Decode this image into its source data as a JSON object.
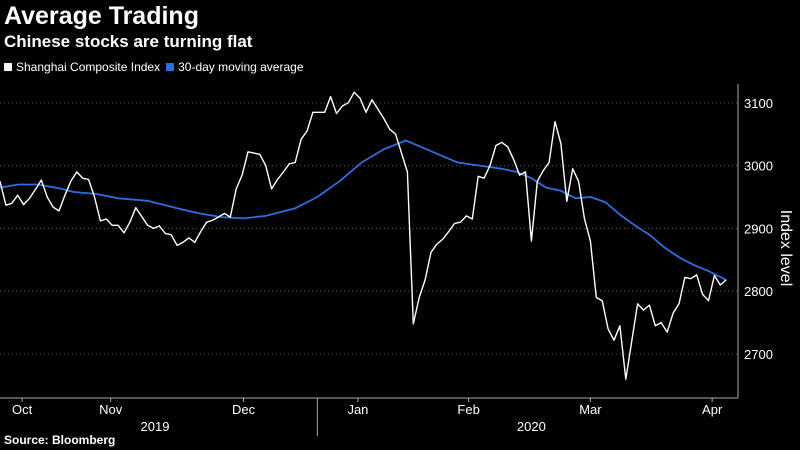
{
  "header": {
    "title": "Average Trading",
    "subtitle": "Chinese stocks are turning flat"
  },
  "footer": {
    "source": "Source: Bloomberg"
  },
  "colors": {
    "background": "#000000",
    "index_line": "#ffffff",
    "ma_line": "#2d6fe0",
    "grid": "#555555"
  },
  "chart_data": {
    "type": "line",
    "title": "Average Trading",
    "subtitle": "Chinese stocks are turning flat",
    "xlabel": "",
    "ylabel": "Index level",
    "ylim": [
      2630,
      3130
    ],
    "yticks": [
      2700,
      2800,
      2900,
      3000,
      3100
    ],
    "xticks": [
      {
        "label": "Oct",
        "t": 0.03
      },
      {
        "label": "Nov",
        "t": 0.15
      },
      {
        "label": "Dec",
        "t": 0.33
      },
      {
        "label": "Jan",
        "t": 0.485
      },
      {
        "label": "Feb",
        "t": 0.635
      },
      {
        "label": "Mar",
        "t": 0.8
      },
      {
        "label": "Apr",
        "t": 0.965
      }
    ],
    "year_labels": [
      {
        "label": "2019",
        "t": 0.21
      },
      {
        "label": "2020",
        "t": 0.72
      }
    ],
    "year_divider_t": 0.43,
    "grid": "horizontal",
    "legend": "top-left",
    "series": [
      {
        "name": "Shanghai Composite Index",
        "color": "#ffffff",
        "values": [
          {
            "t": 0.0,
            "v": 2975
          },
          {
            "t": 0.008,
            "v": 2937
          },
          {
            "t": 0.016,
            "v": 2940
          },
          {
            "t": 0.024,
            "v": 2953
          },
          {
            "t": 0.032,
            "v": 2938
          },
          {
            "t": 0.04,
            "v": 2948
          },
          {
            "t": 0.048,
            "v": 2962
          },
          {
            "t": 0.056,
            "v": 2977
          },
          {
            "t": 0.064,
            "v": 2950
          },
          {
            "t": 0.072,
            "v": 2934
          },
          {
            "t": 0.08,
            "v": 2928
          },
          {
            "t": 0.088,
            "v": 2953
          },
          {
            "t": 0.096,
            "v": 2975
          },
          {
            "t": 0.104,
            "v": 2990
          },
          {
            "t": 0.112,
            "v": 2980
          },
          {
            "t": 0.12,
            "v": 2978
          },
          {
            "t": 0.128,
            "v": 2950
          },
          {
            "t": 0.136,
            "v": 2912
          },
          {
            "t": 0.144,
            "v": 2915
          },
          {
            "t": 0.152,
            "v": 2905
          },
          {
            "t": 0.16,
            "v": 2905
          },
          {
            "t": 0.168,
            "v": 2893
          },
          {
            "t": 0.176,
            "v": 2910
          },
          {
            "t": 0.184,
            "v": 2933
          },
          {
            "t": 0.192,
            "v": 2919
          },
          {
            "t": 0.2,
            "v": 2905
          },
          {
            "t": 0.208,
            "v": 2900
          },
          {
            "t": 0.216,
            "v": 2904
          },
          {
            "t": 0.224,
            "v": 2892
          },
          {
            "t": 0.232,
            "v": 2890
          },
          {
            "t": 0.24,
            "v": 2873
          },
          {
            "t": 0.248,
            "v": 2878
          },
          {
            "t": 0.256,
            "v": 2885
          },
          {
            "t": 0.264,
            "v": 2878
          },
          {
            "t": 0.272,
            "v": 2895
          },
          {
            "t": 0.28,
            "v": 2910
          },
          {
            "t": 0.288,
            "v": 2913
          },
          {
            "t": 0.296,
            "v": 2918
          },
          {
            "t": 0.304,
            "v": 2924
          },
          {
            "t": 0.312,
            "v": 2918
          },
          {
            "t": 0.32,
            "v": 2963
          },
          {
            "t": 0.328,
            "v": 2985
          },
          {
            "t": 0.336,
            "v": 3022
          },
          {
            "t": 0.344,
            "v": 3020
          },
          {
            "t": 0.352,
            "v": 3018
          },
          {
            "t": 0.36,
            "v": 3000
          },
          {
            "t": 0.368,
            "v": 2963
          },
          {
            "t": 0.376,
            "v": 2978
          },
          {
            "t": 0.384,
            "v": 2990
          },
          {
            "t": 0.392,
            "v": 3003
          },
          {
            "t": 0.4,
            "v": 3005
          },
          {
            "t": 0.408,
            "v": 3042
          },
          {
            "t": 0.416,
            "v": 3055
          },
          {
            "t": 0.424,
            "v": 3085
          },
          {
            "t": 0.432,
            "v": 3085
          },
          {
            "t": 0.44,
            "v": 3085
          },
          {
            "t": 0.448,
            "v": 3110
          },
          {
            "t": 0.456,
            "v": 3083
          },
          {
            "t": 0.464,
            "v": 3095
          },
          {
            "t": 0.472,
            "v": 3100
          },
          {
            "t": 0.48,
            "v": 3117
          },
          {
            "t": 0.488,
            "v": 3107
          },
          {
            "t": 0.496,
            "v": 3085
          },
          {
            "t": 0.504,
            "v": 3105
          },
          {
            "t": 0.512,
            "v": 3090
          },
          {
            "t": 0.52,
            "v": 3075
          },
          {
            "t": 0.528,
            "v": 3058
          },
          {
            "t": 0.536,
            "v": 3050
          },
          {
            "t": 0.544,
            "v": 3020
          },
          {
            "t": 0.552,
            "v": 2990
          },
          {
            "t": 0.56,
            "v": 2748
          },
          {
            "t": 0.568,
            "v": 2790
          },
          {
            "t": 0.576,
            "v": 2818
          },
          {
            "t": 0.584,
            "v": 2862
          },
          {
            "t": 0.592,
            "v": 2875
          },
          {
            "t": 0.6,
            "v": 2883
          },
          {
            "t": 0.608,
            "v": 2895
          },
          {
            "t": 0.616,
            "v": 2908
          },
          {
            "t": 0.624,
            "v": 2910
          },
          {
            "t": 0.632,
            "v": 2920
          },
          {
            "t": 0.64,
            "v": 2915
          },
          {
            "t": 0.648,
            "v": 2983
          },
          {
            "t": 0.656,
            "v": 2980
          },
          {
            "t": 0.664,
            "v": 3000
          },
          {
            "t": 0.672,
            "v": 3032
          },
          {
            "t": 0.68,
            "v": 3037
          },
          {
            "t": 0.688,
            "v": 3030
          },
          {
            "t": 0.696,
            "v": 3010
          },
          {
            "t": 0.704,
            "v": 2985
          },
          {
            "t": 0.712,
            "v": 2990
          },
          {
            "t": 0.72,
            "v": 2880
          },
          {
            "t": 0.728,
            "v": 2975
          },
          {
            "t": 0.736,
            "v": 2992
          },
          {
            "t": 0.744,
            "v": 3005
          },
          {
            "t": 0.752,
            "v": 3070
          },
          {
            "t": 0.76,
            "v": 3035
          },
          {
            "t": 0.768,
            "v": 2943
          },
          {
            "t": 0.776,
            "v": 2995
          },
          {
            "t": 0.784,
            "v": 2975
          },
          {
            "t": 0.792,
            "v": 2915
          },
          {
            "t": 0.8,
            "v": 2880
          },
          {
            "t": 0.808,
            "v": 2790
          },
          {
            "t": 0.816,
            "v": 2785
          },
          {
            "t": 0.824,
            "v": 2740
          },
          {
            "t": 0.832,
            "v": 2722
          },
          {
            "t": 0.84,
            "v": 2745
          },
          {
            "t": 0.848,
            "v": 2660
          },
          {
            "t": 0.856,
            "v": 2720
          },
          {
            "t": 0.864,
            "v": 2780
          },
          {
            "t": 0.872,
            "v": 2770
          },
          {
            "t": 0.88,
            "v": 2778
          },
          {
            "t": 0.888,
            "v": 2745
          },
          {
            "t": 0.896,
            "v": 2750
          },
          {
            "t": 0.904,
            "v": 2735
          },
          {
            "t": 0.912,
            "v": 2765
          },
          {
            "t": 0.92,
            "v": 2780
          },
          {
            "t": 0.928,
            "v": 2822
          },
          {
            "t": 0.936,
            "v": 2820
          },
          {
            "t": 0.944,
            "v": 2826
          },
          {
            "t": 0.952,
            "v": 2795
          },
          {
            "t": 0.96,
            "v": 2785
          },
          {
            "t": 0.968,
            "v": 2825
          },
          {
            "t": 0.976,
            "v": 2810
          },
          {
            "t": 0.984,
            "v": 2818
          }
        ]
      },
      {
        "name": "30-day moving average",
        "color": "#2d6fe0",
        "values": [
          {
            "t": 0.0,
            "v": 2965
          },
          {
            "t": 0.025,
            "v": 2970
          },
          {
            "t": 0.05,
            "v": 2970
          },
          {
            "t": 0.08,
            "v": 2964
          },
          {
            "t": 0.1,
            "v": 2958
          },
          {
            "t": 0.13,
            "v": 2955
          },
          {
            "t": 0.16,
            "v": 2948
          },
          {
            "t": 0.2,
            "v": 2944
          },
          {
            "t": 0.24,
            "v": 2932
          },
          {
            "t": 0.27,
            "v": 2924
          },
          {
            "t": 0.3,
            "v": 2918
          },
          {
            "t": 0.33,
            "v": 2916
          },
          {
            "t": 0.36,
            "v": 2920
          },
          {
            "t": 0.4,
            "v": 2932
          },
          {
            "t": 0.43,
            "v": 2950
          },
          {
            "t": 0.46,
            "v": 2975
          },
          {
            "t": 0.49,
            "v": 3005
          },
          {
            "t": 0.52,
            "v": 3026
          },
          {
            "t": 0.55,
            "v": 3040
          },
          {
            "t": 0.57,
            "v": 3030
          },
          {
            "t": 0.6,
            "v": 3015
          },
          {
            "t": 0.62,
            "v": 3005
          },
          {
            "t": 0.65,
            "v": 3000
          },
          {
            "t": 0.68,
            "v": 2995
          },
          {
            "t": 0.7,
            "v": 2990
          },
          {
            "t": 0.72,
            "v": 2980
          },
          {
            "t": 0.74,
            "v": 2965
          },
          {
            "t": 0.76,
            "v": 2960
          },
          {
            "t": 0.78,
            "v": 2948
          },
          {
            "t": 0.8,
            "v": 2950
          },
          {
            "t": 0.82,
            "v": 2942
          },
          {
            "t": 0.84,
            "v": 2922
          },
          {
            "t": 0.86,
            "v": 2905
          },
          {
            "t": 0.88,
            "v": 2890
          },
          {
            "t": 0.9,
            "v": 2870
          },
          {
            "t": 0.92,
            "v": 2854
          },
          {
            "t": 0.94,
            "v": 2842
          },
          {
            "t": 0.96,
            "v": 2832
          },
          {
            "t": 0.984,
            "v": 2818
          }
        ]
      }
    ]
  }
}
